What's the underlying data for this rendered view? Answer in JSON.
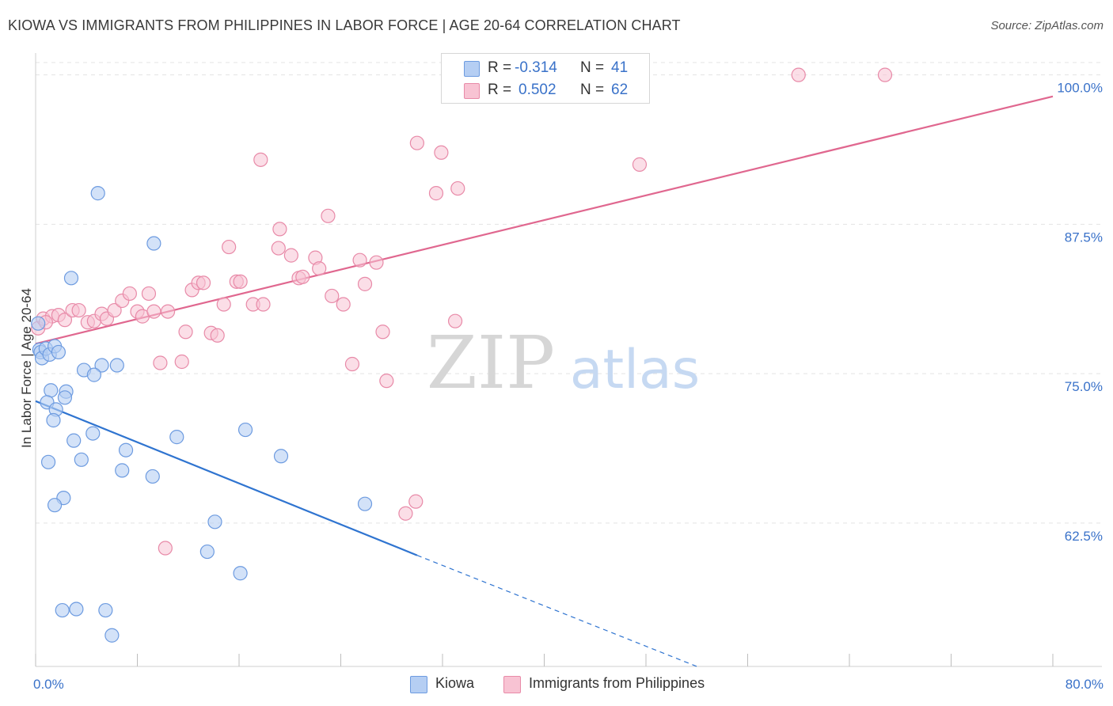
{
  "header": {
    "title": "KIOWA VS IMMIGRANTS FROM PHILIPPINES IN LABOR FORCE | AGE 20-64 CORRELATION CHART",
    "source": "Source: ZipAtlas.com"
  },
  "watermark": {
    "part1": "ZIP",
    "part2": "atlas"
  },
  "legend": {
    "r_label": "R =",
    "n_label": "N =",
    "rows": [
      {
        "r": "-0.314",
        "n": "41"
      },
      {
        "r": "0.502",
        "n": "62"
      }
    ]
  },
  "colors": {
    "kiowa_fill": "#b5cef3",
    "kiowa_stroke": "#6d9be0",
    "kiowa_line": "#2f74d0",
    "phil_fill": "#f8c3d3",
    "phil_stroke": "#e88aa8",
    "phil_line": "#e0678f",
    "axis_value": "#3a72c9",
    "grid": "#e3e3e3"
  },
  "chart_data": {
    "type": "scatter",
    "title": "KIOWA VS IMMIGRANTS FROM PHILIPPINES IN LABOR FORCE | AGE 20-64 CORRELATION CHART",
    "xlabel": "",
    "ylabel": "In Labor Force | Age 20-64",
    "xlim": [
      0,
      80
    ],
    "ylim": [
      50.5,
      101.5
    ],
    "x_tick_labels": [
      "0.0%",
      "80.0%"
    ],
    "y_ticks": [
      62.5,
      75.0,
      87.5,
      100.0
    ],
    "y_tick_labels": [
      "62.5%",
      "75.0%",
      "87.5%",
      "100.0%"
    ],
    "grid": true,
    "legend_position": "top-center",
    "series": [
      {
        "name": "Kiowa",
        "r": -0.314,
        "n": 41,
        "trend": {
          "x_solid": [
            0.0,
            30.0
          ],
          "y_solid": [
            72.7,
            59.8
          ],
          "x_dash_end": 52.0,
          "y_dash_end": 50.5
        },
        "points": [
          [
            0.2,
            79.2
          ],
          [
            0.3,
            77.0
          ],
          [
            0.4,
            76.8
          ],
          [
            0.5,
            76.3
          ],
          [
            0.8,
            77.1
          ],
          [
            1.1,
            76.6
          ],
          [
            1.5,
            77.3
          ],
          [
            1.8,
            76.8
          ],
          [
            4.9,
            90.1
          ],
          [
            9.3,
            85.9
          ],
          [
            2.8,
            83.0
          ],
          [
            5.2,
            75.7
          ],
          [
            6.4,
            75.7
          ],
          [
            3.8,
            75.3
          ],
          [
            4.6,
            74.9
          ],
          [
            1.2,
            73.6
          ],
          [
            2.4,
            73.5
          ],
          [
            2.3,
            73.0
          ],
          [
            0.9,
            72.6
          ],
          [
            1.6,
            72.0
          ],
          [
            1.4,
            71.1
          ],
          [
            16.5,
            70.3
          ],
          [
            4.5,
            70.0
          ],
          [
            11.1,
            69.7
          ],
          [
            3.0,
            69.4
          ],
          [
            7.1,
            68.6
          ],
          [
            19.3,
            68.1
          ],
          [
            1.0,
            67.6
          ],
          [
            3.6,
            67.8
          ],
          [
            6.8,
            66.9
          ],
          [
            9.2,
            66.4
          ],
          [
            2.2,
            64.6
          ],
          [
            1.5,
            64.0
          ],
          [
            25.9,
            64.1
          ],
          [
            14.1,
            62.6
          ],
          [
            13.5,
            60.1
          ],
          [
            16.1,
            58.3
          ],
          [
            2.1,
            55.2
          ],
          [
            3.2,
            55.3
          ],
          [
            5.5,
            55.2
          ],
          [
            6.0,
            53.1
          ]
        ]
      },
      {
        "name": "Immigrants from Philippines",
        "r": 0.502,
        "n": 62,
        "trend": {
          "x_solid": [
            0.0,
            80.0
          ],
          "y_solid": [
            77.5,
            98.2
          ]
        },
        "points": [
          [
            0.2,
            78.8
          ],
          [
            0.6,
            79.6
          ],
          [
            1.3,
            79.8
          ],
          [
            1.8,
            79.9
          ],
          [
            2.3,
            79.5
          ],
          [
            2.9,
            80.3
          ],
          [
            3.4,
            80.3
          ],
          [
            4.1,
            79.3
          ],
          [
            4.6,
            79.4
          ],
          [
            5.2,
            80.0
          ],
          [
            5.6,
            79.6
          ],
          [
            6.2,
            80.3
          ],
          [
            6.8,
            81.1
          ],
          [
            7.4,
            81.7
          ],
          [
            8.0,
            80.2
          ],
          [
            8.4,
            79.8
          ],
          [
            8.9,
            81.7
          ],
          [
            9.3,
            80.2
          ],
          [
            10.4,
            80.2
          ],
          [
            11.8,
            78.5
          ],
          [
            12.3,
            82.0
          ],
          [
            12.8,
            82.6
          ],
          [
            13.2,
            82.6
          ],
          [
            13.8,
            78.4
          ],
          [
            14.3,
            78.2
          ],
          [
            14.8,
            80.8
          ],
          [
            15.2,
            85.6
          ],
          [
            15.8,
            82.7
          ],
          [
            16.1,
            82.7
          ],
          [
            17.1,
            80.8
          ],
          [
            17.9,
            80.8
          ],
          [
            17.7,
            92.9
          ],
          [
            19.1,
            85.5
          ],
          [
            19.2,
            87.1
          ],
          [
            20.1,
            84.9
          ],
          [
            20.7,
            83.0
          ],
          [
            21.0,
            83.1
          ],
          [
            22.0,
            84.7
          ],
          [
            22.3,
            83.8
          ],
          [
            23.0,
            88.2
          ],
          [
            23.3,
            81.5
          ],
          [
            24.2,
            80.8
          ],
          [
            24.9,
            75.8
          ],
          [
            25.5,
            84.5
          ],
          [
            25.9,
            82.5
          ],
          [
            26.8,
            84.3
          ],
          [
            27.3,
            78.5
          ],
          [
            27.6,
            74.4
          ],
          [
            30.0,
            94.3
          ],
          [
            31.5,
            90.1
          ],
          [
            31.9,
            93.5
          ],
          [
            33.0,
            79.4
          ],
          [
            33.2,
            90.5
          ],
          [
            29.1,
            63.3
          ],
          [
            29.9,
            64.3
          ],
          [
            10.2,
            60.4
          ],
          [
            11.5,
            76.0
          ],
          [
            9.8,
            75.9
          ],
          [
            60.0,
            100.0
          ],
          [
            66.8,
            100.0
          ],
          [
            47.5,
            92.5
          ],
          [
            0.8,
            79.3
          ]
        ]
      }
    ]
  }
}
